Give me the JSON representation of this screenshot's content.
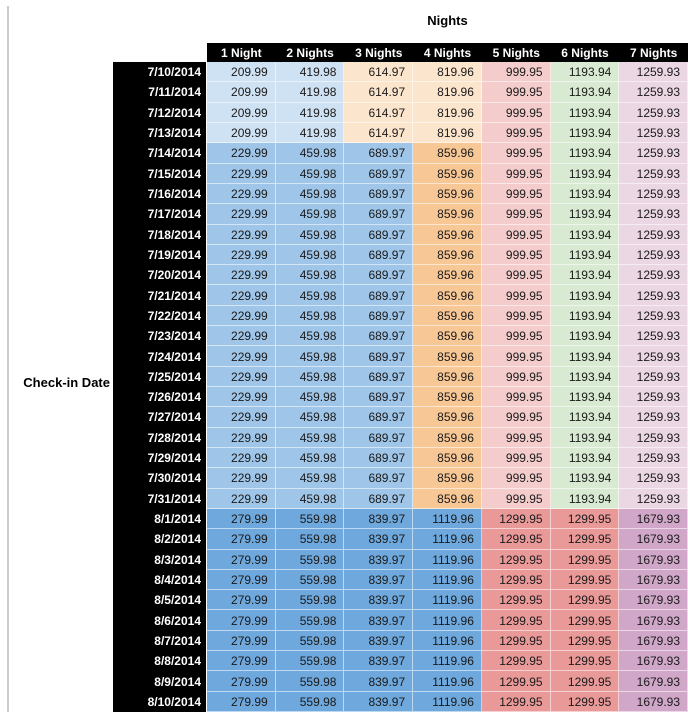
{
  "title": "Nights",
  "side_label": "Check-in Date",
  "columns": [
    "1 Night",
    "2 Nights",
    "3 Nights",
    "4 Nights",
    "5 Nights",
    "6 Nights",
    "7 Nights"
  ],
  "palette": {
    "blue_light": "#cfe2f3",
    "blue_med": "#9fc5e8",
    "blue_dark": "#6fa8dc",
    "orange_light": "#fce5cd",
    "orange_med": "#f8c796",
    "red_light": "#f4cccc",
    "red_med": "#ea9999",
    "green_light": "#d9ead3",
    "pink_light": "#ebd6e3",
    "mauve_med": "#d1a7c9",
    "header_bg": "#000000",
    "header_text": "#ffffff",
    "cell_text": "#1a1a1a"
  },
  "tiers": {
    "A": {
      "colors": [
        "blue_light",
        "blue_light",
        "orange_light",
        "orange_light",
        "red_light",
        "green_light",
        "pink_light"
      ]
    },
    "B": {
      "colors": [
        "blue_med",
        "blue_med",
        "blue_med",
        "orange_med",
        "red_light",
        "green_light",
        "pink_light"
      ]
    },
    "C": {
      "colors": [
        "blue_dark",
        "blue_dark",
        "blue_dark",
        "blue_dark",
        "red_med",
        "red_med",
        "mauve_med"
      ]
    }
  },
  "rows": [
    {
      "date": "7/10/2014",
      "tier": "A",
      "values": [
        "209.99",
        "419.98",
        "614.97",
        "819.96",
        "999.95",
        "1193.94",
        "1259.93"
      ]
    },
    {
      "date": "7/11/2014",
      "tier": "A",
      "values": [
        "209.99",
        "419.98",
        "614.97",
        "819.96",
        "999.95",
        "1193.94",
        "1259.93"
      ]
    },
    {
      "date": "7/12/2014",
      "tier": "A",
      "values": [
        "209.99",
        "419.98",
        "614.97",
        "819.96",
        "999.95",
        "1193.94",
        "1259.93"
      ]
    },
    {
      "date": "7/13/2014",
      "tier": "A",
      "values": [
        "209.99",
        "419.98",
        "614.97",
        "819.96",
        "999.95",
        "1193.94",
        "1259.93"
      ]
    },
    {
      "date": "7/14/2014",
      "tier": "B",
      "values": [
        "229.99",
        "459.98",
        "689.97",
        "859.96",
        "999.95",
        "1193.94",
        "1259.93"
      ]
    },
    {
      "date": "7/15/2014",
      "tier": "B",
      "values": [
        "229.99",
        "459.98",
        "689.97",
        "859.96",
        "999.95",
        "1193.94",
        "1259.93"
      ]
    },
    {
      "date": "7/16/2014",
      "tier": "B",
      "values": [
        "229.99",
        "459.98",
        "689.97",
        "859.96",
        "999.95",
        "1193.94",
        "1259.93"
      ]
    },
    {
      "date": "7/17/2014",
      "tier": "B",
      "values": [
        "229.99",
        "459.98",
        "689.97",
        "859.96",
        "999.95",
        "1193.94",
        "1259.93"
      ]
    },
    {
      "date": "7/18/2014",
      "tier": "B",
      "values": [
        "229.99",
        "459.98",
        "689.97",
        "859.96",
        "999.95",
        "1193.94",
        "1259.93"
      ]
    },
    {
      "date": "7/19/2014",
      "tier": "B",
      "values": [
        "229.99",
        "459.98",
        "689.97",
        "859.96",
        "999.95",
        "1193.94",
        "1259.93"
      ]
    },
    {
      "date": "7/20/2014",
      "tier": "B",
      "values": [
        "229.99",
        "459.98",
        "689.97",
        "859.96",
        "999.95",
        "1193.94",
        "1259.93"
      ]
    },
    {
      "date": "7/21/2014",
      "tier": "B",
      "values": [
        "229.99",
        "459.98",
        "689.97",
        "859.96",
        "999.95",
        "1193.94",
        "1259.93"
      ]
    },
    {
      "date": "7/22/2014",
      "tier": "B",
      "values": [
        "229.99",
        "459.98",
        "689.97",
        "859.96",
        "999.95",
        "1193.94",
        "1259.93"
      ]
    },
    {
      "date": "7/23/2014",
      "tier": "B",
      "values": [
        "229.99",
        "459.98",
        "689.97",
        "859.96",
        "999.95",
        "1193.94",
        "1259.93"
      ]
    },
    {
      "date": "7/24/2014",
      "tier": "B",
      "values": [
        "229.99",
        "459.98",
        "689.97",
        "859.96",
        "999.95",
        "1193.94",
        "1259.93"
      ]
    },
    {
      "date": "7/25/2014",
      "tier": "B",
      "values": [
        "229.99",
        "459.98",
        "689.97",
        "859.96",
        "999.95",
        "1193.94",
        "1259.93"
      ]
    },
    {
      "date": "7/26/2014",
      "tier": "B",
      "values": [
        "229.99",
        "459.98",
        "689.97",
        "859.96",
        "999.95",
        "1193.94",
        "1259.93"
      ]
    },
    {
      "date": "7/27/2014",
      "tier": "B",
      "values": [
        "229.99",
        "459.98",
        "689.97",
        "859.96",
        "999.95",
        "1193.94",
        "1259.93"
      ]
    },
    {
      "date": "7/28/2014",
      "tier": "B",
      "values": [
        "229.99",
        "459.98",
        "689.97",
        "859.96",
        "999.95",
        "1193.94",
        "1259.93"
      ]
    },
    {
      "date": "7/29/2014",
      "tier": "B",
      "values": [
        "229.99",
        "459.98",
        "689.97",
        "859.96",
        "999.95",
        "1193.94",
        "1259.93"
      ]
    },
    {
      "date": "7/30/2014",
      "tier": "B",
      "values": [
        "229.99",
        "459.98",
        "689.97",
        "859.96",
        "999.95",
        "1193.94",
        "1259.93"
      ]
    },
    {
      "date": "7/31/2014",
      "tier": "B",
      "values": [
        "229.99",
        "459.98",
        "689.97",
        "859.96",
        "999.95",
        "1193.94",
        "1259.93"
      ]
    },
    {
      "date": "8/1/2014",
      "tier": "C",
      "values": [
        "279.99",
        "559.98",
        "839.97",
        "1119.96",
        "1299.95",
        "1299.95",
        "1679.93"
      ]
    },
    {
      "date": "8/2/2014",
      "tier": "C",
      "values": [
        "279.99",
        "559.98",
        "839.97",
        "1119.96",
        "1299.95",
        "1299.95",
        "1679.93"
      ]
    },
    {
      "date": "8/3/2014",
      "tier": "C",
      "values": [
        "279.99",
        "559.98",
        "839.97",
        "1119.96",
        "1299.95",
        "1299.95",
        "1679.93"
      ]
    },
    {
      "date": "8/4/2014",
      "tier": "C",
      "values": [
        "279.99",
        "559.98",
        "839.97",
        "1119.96",
        "1299.95",
        "1299.95",
        "1679.93"
      ]
    },
    {
      "date": "8/5/2014",
      "tier": "C",
      "values": [
        "279.99",
        "559.98",
        "839.97",
        "1119.96",
        "1299.95",
        "1299.95",
        "1679.93"
      ]
    },
    {
      "date": "8/6/2014",
      "tier": "C",
      "values": [
        "279.99",
        "559.98",
        "839.97",
        "1119.96",
        "1299.95",
        "1299.95",
        "1679.93"
      ]
    },
    {
      "date": "8/7/2014",
      "tier": "C",
      "values": [
        "279.99",
        "559.98",
        "839.97",
        "1119.96",
        "1299.95",
        "1299.95",
        "1679.93"
      ]
    },
    {
      "date": "8/8/2014",
      "tier": "C",
      "values": [
        "279.99",
        "559.98",
        "839.97",
        "1119.96",
        "1299.95",
        "1299.95",
        "1679.93"
      ]
    },
    {
      "date": "8/9/2014",
      "tier": "C",
      "values": [
        "279.99",
        "559.98",
        "839.97",
        "1119.96",
        "1299.95",
        "1299.95",
        "1679.93"
      ]
    },
    {
      "date": "8/10/2014",
      "tier": "C",
      "values": [
        "279.99",
        "559.98",
        "839.97",
        "1119.96",
        "1299.95",
        "1299.95",
        "1679.93"
      ]
    }
  ]
}
